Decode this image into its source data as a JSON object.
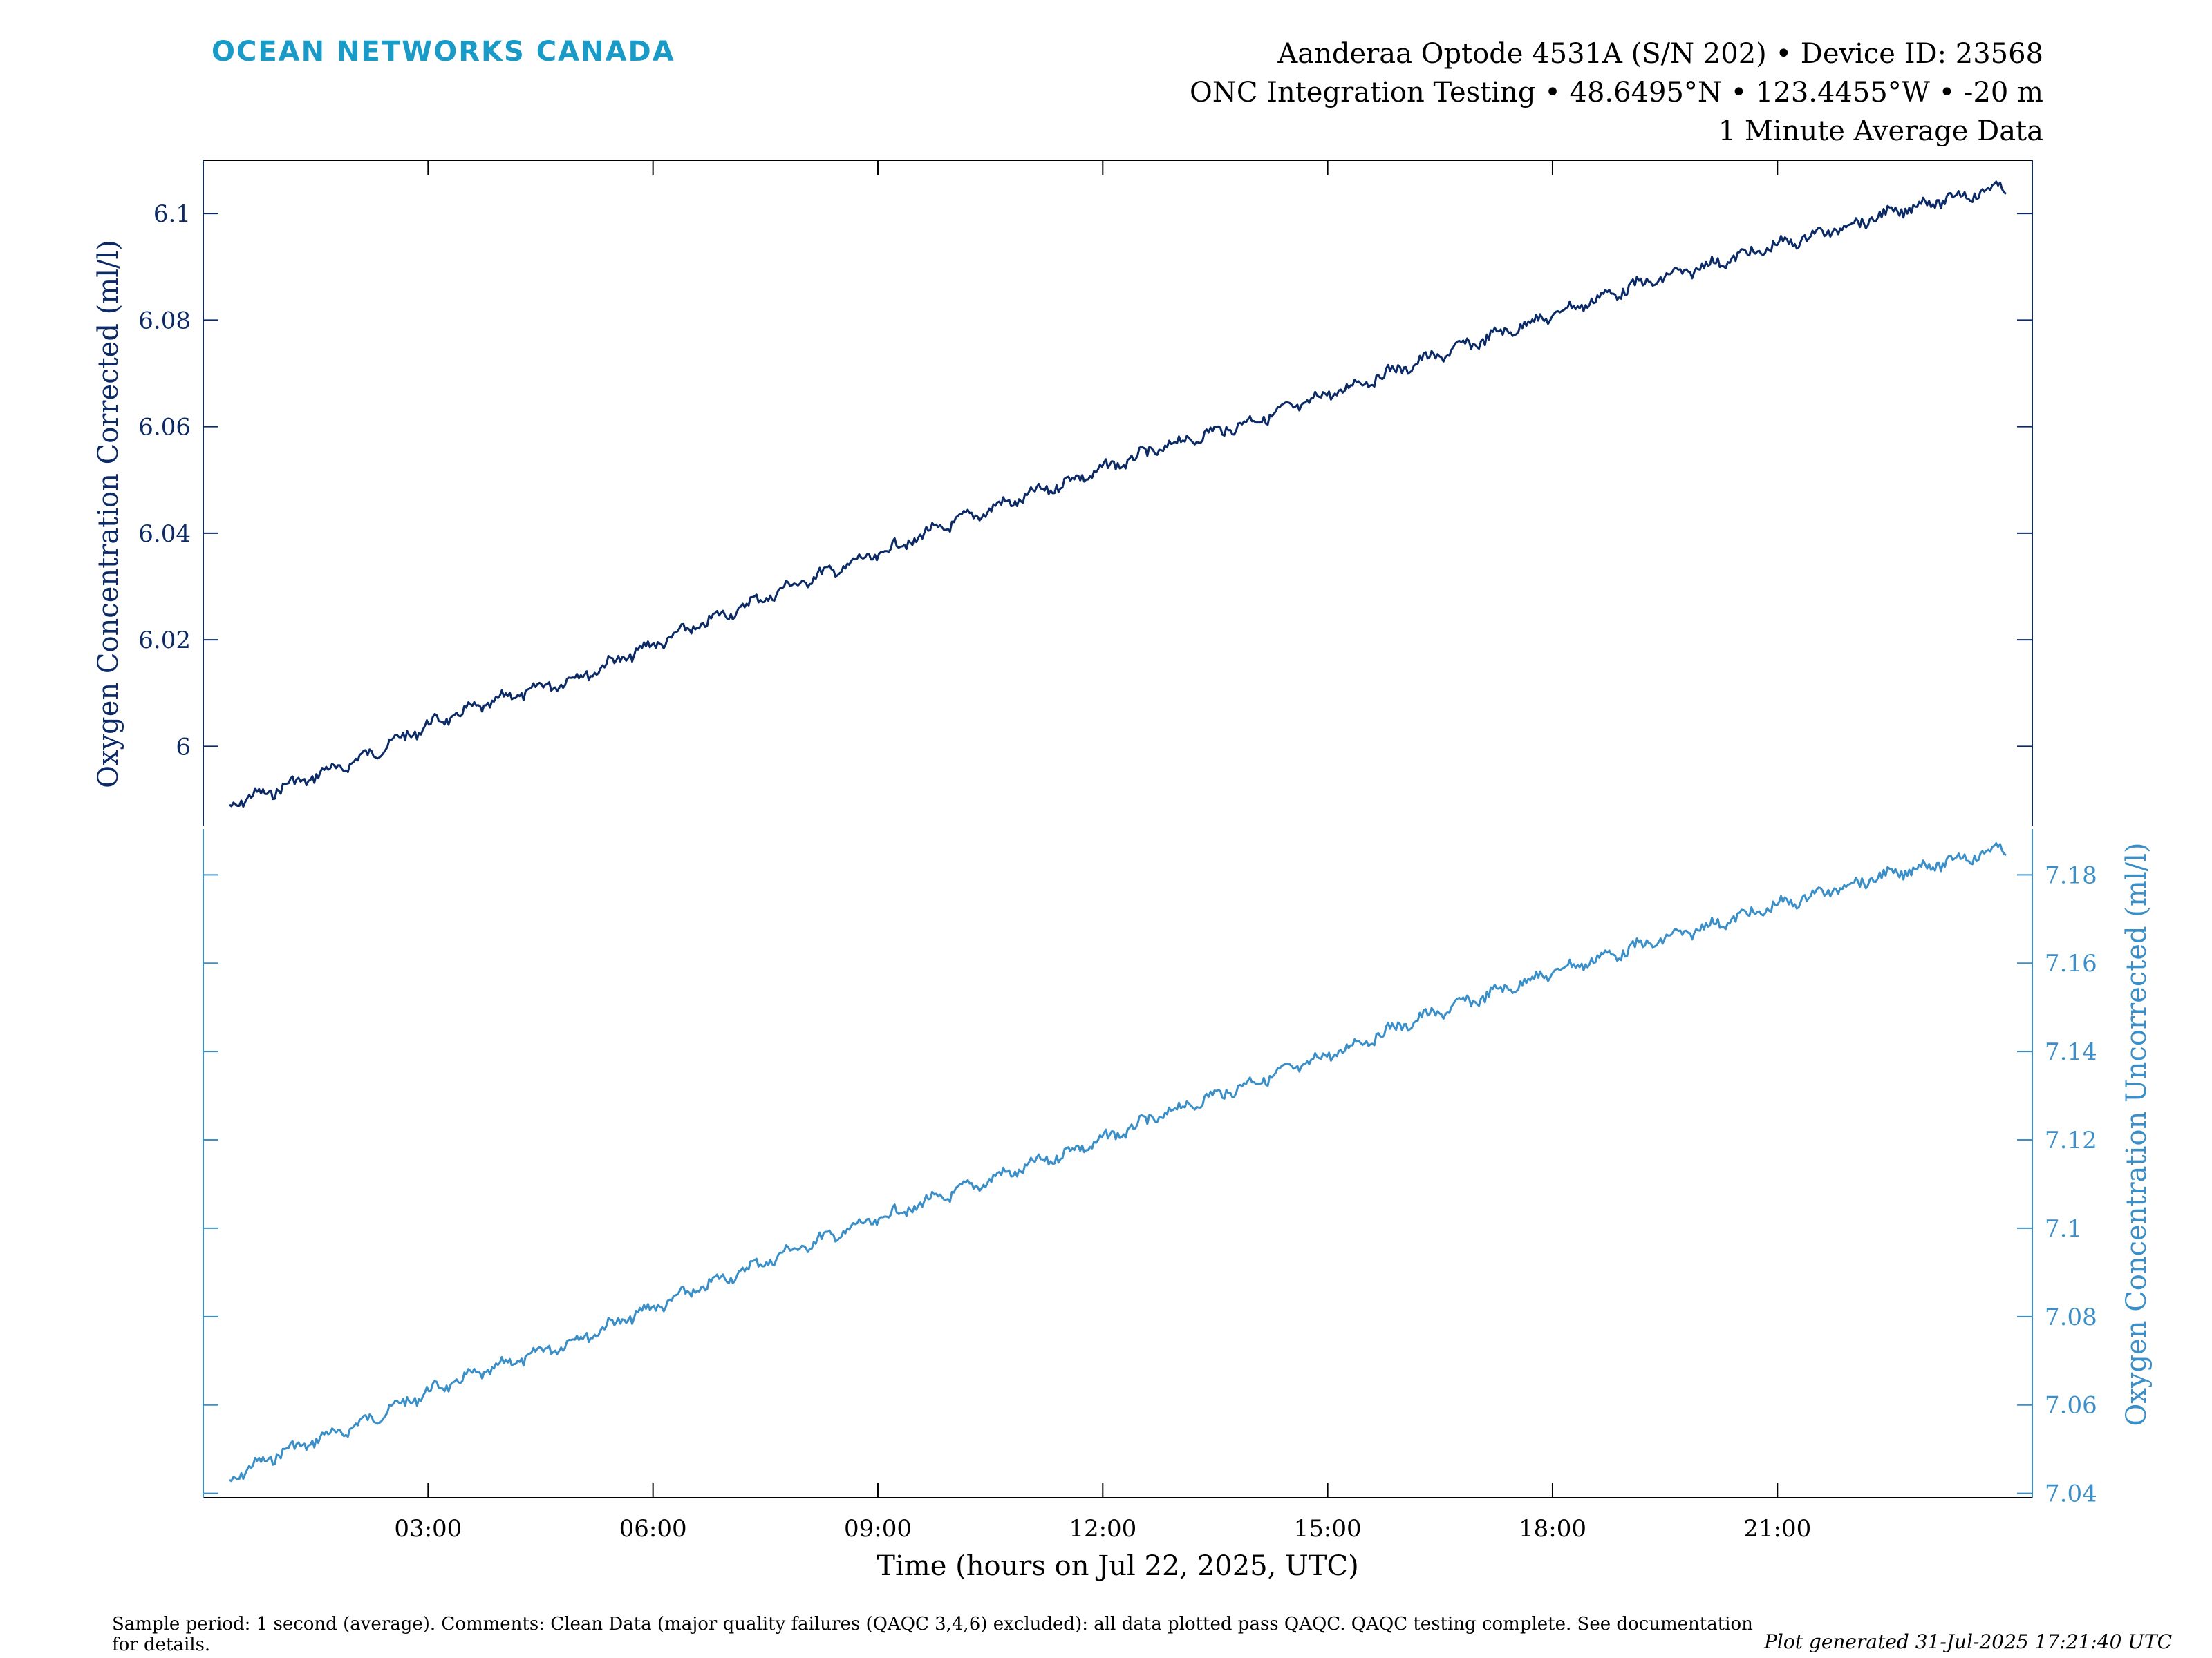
{
  "brand": "OCEAN NETWORKS CANADA",
  "header": {
    "line1": "Aanderaa Optode 4531A (S/N 202) • Device ID: 23568",
    "line2": "ONC Integration Testing • 48.6495°N • 123.4455°W • -20 m",
    "line3": "1 Minute Average Data"
  },
  "footnote": "Sample period: 1 second (average). Comments: Clean Data (major quality failures (QAQC 3,4,6) excluded): all data plotted pass QAQC. QAQC testing complete. See documentation for details.",
  "generated": "Plot generated 31-Jul-2025 17:21:40 UTC",
  "chart_data": [
    {
      "type": "line",
      "title": "",
      "xlabel": "Time (hours on Jul 22, 2025, UTC)",
      "ylabel": "Oxygen Concentration Corrected (ml/l)",
      "xlim": [
        0,
        24.4
      ],
      "ylim": [
        5.985,
        6.11
      ],
      "xticks": [
        "03:00",
        "06:00",
        "09:00",
        "12:00",
        "15:00",
        "18:00",
        "21:00"
      ],
      "xtick_values": [
        3,
        6,
        9,
        12,
        15,
        18,
        21
      ],
      "yticks": [
        6,
        6.02,
        6.04,
        6.06,
        6.08,
        6.1
      ],
      "ytick_labels": [
        "6",
        "6.02",
        "6.04",
        "6.06",
        "6.08",
        "6.1"
      ],
      "grid": false,
      "series": [
        {
          "color": "#0b2a66",
          "x": [
            0.35,
            1,
            2,
            3,
            4,
            5,
            6,
            7,
            8,
            9,
            10,
            11,
            12,
            13,
            14,
            15,
            16,
            17,
            18,
            19,
            20,
            21,
            22,
            23,
            24.05
          ],
          "y": [
            5.989,
            5.992,
            5.997,
            6.004,
            6.009,
            6.013,
            6.019,
            6.025,
            6.031,
            6.036,
            6.042,
            6.047,
            6.052,
            6.057,
            6.061,
            6.066,
            6.071,
            6.076,
            6.081,
            6.086,
            6.09,
            6.094,
            6.098,
            6.102,
            6.105
          ]
        }
      ]
    },
    {
      "type": "line",
      "title": "",
      "xlabel": "Time (hours on Jul 22, 2025, UTC)",
      "ylabel": "Oxygen Concentration Uncorrected (ml/l)",
      "xlim": [
        0,
        24.4
      ],
      "ylim": [
        7.039,
        7.191
      ],
      "xticks": [
        "03:00",
        "06:00",
        "09:00",
        "12:00",
        "15:00",
        "18:00",
        "21:00"
      ],
      "xtick_values": [
        3,
        6,
        9,
        12,
        15,
        18,
        21
      ],
      "yticks": [
        7.04,
        7.06,
        7.08,
        7.1,
        7.12,
        7.14,
        7.16,
        7.18
      ],
      "ytick_labels": [
        "7.04",
        "7.06",
        "7.08",
        "7.1",
        "7.12",
        "7.14",
        "7.16",
        "7.18"
      ],
      "grid": false,
      "series": [
        {
          "color": "#3a8fc8",
          "x": [
            0.35,
            1,
            2,
            3,
            4,
            5,
            6,
            7,
            8,
            9,
            10,
            11,
            12,
            13,
            14,
            15,
            16,
            17,
            18,
            19,
            20,
            21,
            22,
            23,
            24.05
          ],
          "y": [
            7.043,
            7.049,
            7.055,
            7.063,
            7.069,
            7.075,
            7.082,
            7.089,
            7.096,
            7.102,
            7.108,
            7.114,
            7.12,
            7.127,
            7.133,
            7.139,
            7.146,
            7.152,
            7.158,
            7.163,
            7.168,
            7.173,
            7.178,
            7.182,
            7.186
          ]
        }
      ]
    }
  ]
}
